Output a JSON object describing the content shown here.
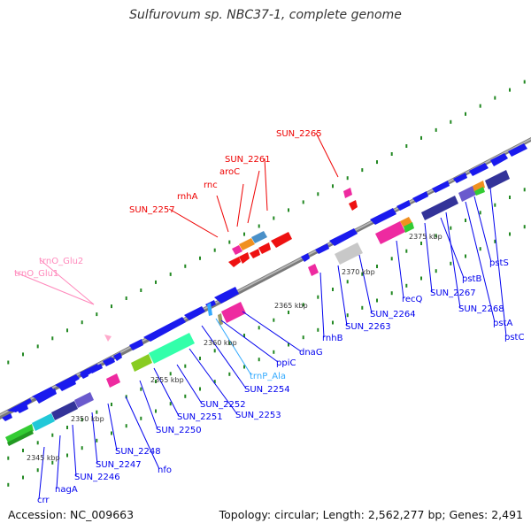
{
  "title": "Sulfurovum sp. NBC37-1, complete genome",
  "footer": {
    "accession": "Accession: NC_009663",
    "summary": "Topology: circular; Length: 2,562,277 bp; Genes: 2,491"
  },
  "colors": {
    "forward_cds": "#0000ee",
    "reverse_cds": "#ee0000",
    "rna_label": "#ff88bb",
    "trna_label": "#33aaff",
    "backbone": "#808080",
    "tick": "#333333",
    "gc_dot": "#228822"
  },
  "ticks": [
    "2345 kbp",
    "2350 kbp",
    "2355 kbp",
    "2360 kbp",
    "2365 kbp",
    "2370 kbp",
    "2375 kbp"
  ],
  "gene_labels": {
    "forward": [
      "crr",
      "nagA",
      "SUN_2246",
      "SUN_2247",
      "SUN_2248",
      "nfo",
      "SUN_2250",
      "SUN_2251",
      "SUN_2252",
      "SUN_2253",
      "SUN_2254",
      "ppiC",
      "dnaG",
      "rnhB",
      "SUN_2263",
      "SUN_2264",
      "recQ",
      "SUN_2267",
      "pstB",
      "SUN_2268",
      "pstA",
      "pstS",
      "pstC"
    ],
    "reverse": [
      "SUN_2257",
      "rnhA",
      "rnc",
      "aroC",
      "SUN_2261",
      "SUN_2265"
    ],
    "rna": [
      "trnO_Glu2",
      "trnO_Glu1"
    ],
    "trna": [
      "trnP_Ala"
    ]
  }
}
